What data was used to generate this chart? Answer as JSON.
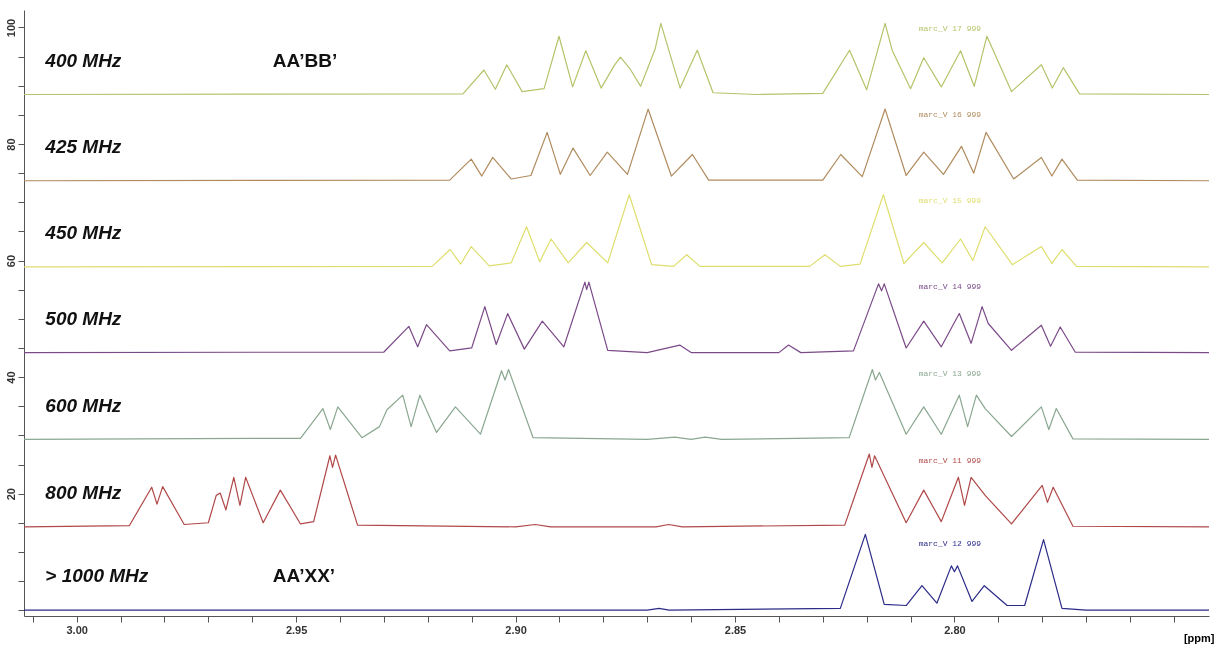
{
  "chart_data": {
    "type": "line",
    "xlabel": "[ppm]",
    "xlim": [
      3.012,
      2.742
    ],
    "ylim": [
      -1,
      103
    ],
    "xticks": [
      {
        "value": 3.01,
        "label": null
      },
      {
        "value": 3.0,
        "label": "3.00"
      },
      {
        "value": 2.99,
        "label": null
      },
      {
        "value": 2.98,
        "label": null
      },
      {
        "value": 2.97,
        "label": null
      },
      {
        "value": 2.96,
        "label": null
      },
      {
        "value": 2.95,
        "label": "2.95"
      },
      {
        "value": 2.94,
        "label": null
      },
      {
        "value": 2.93,
        "label": null
      },
      {
        "value": 2.92,
        "label": null
      },
      {
        "value": 2.91,
        "label": null
      },
      {
        "value": 2.9,
        "label": "2.90"
      },
      {
        "value": 2.89,
        "label": null
      },
      {
        "value": 2.88,
        "label": null
      },
      {
        "value": 2.87,
        "label": null
      },
      {
        "value": 2.86,
        "label": null
      },
      {
        "value": 2.85,
        "label": "2.85"
      },
      {
        "value": 2.84,
        "label": null
      },
      {
        "value": 2.83,
        "label": null
      },
      {
        "value": 2.82,
        "label": null
      },
      {
        "value": 2.81,
        "label": null
      },
      {
        "value": 2.8,
        "label": "2.80"
      },
      {
        "value": 2.79,
        "label": null
      },
      {
        "value": 2.78,
        "label": null
      },
      {
        "value": 2.77,
        "label": null
      },
      {
        "value": 2.76,
        "label": null
      },
      {
        "value": 2.75,
        "label": null
      }
    ],
    "yticks": [
      {
        "value": 0,
        "label": null
      },
      {
        "value": 5,
        "label": null
      },
      {
        "value": 10,
        "label": null
      },
      {
        "value": 15,
        "label": null
      },
      20,
      {
        "value": 25,
        "label": null
      },
      {
        "value": 30,
        "label": null
      },
      {
        "value": 35,
        "label": null
      },
      40,
      {
        "value": 45,
        "label": null
      },
      {
        "value": 50,
        "label": null
      },
      {
        "value": 55,
        "label": null
      },
      60,
      {
        "value": 65,
        "label": null
      },
      {
        "value": 70,
        "label": null
      },
      {
        "value": 75,
        "label": null
      },
      80,
      {
        "value": 85,
        "label": null
      },
      {
        "value": 90,
        "label": null
      },
      {
        "value": 95,
        "label": null
      },
      100
    ],
    "grid": false,
    "legend": false,
    "marker": "none",
    "line_style": "solid",
    "annotations": [
      "AA’BB’",
      "AA’XX’",
      "marc_V  17  999",
      "marc_V  16  999",
      "marc_V  15  999",
      "marc_V  14  999",
      "marc_V  13  999",
      "marc_V  11  999",
      "marc_V  12  999"
    ],
    "series": [
      {
        "name": "400 MHz",
        "color": "#b3c46a",
        "x": [
          3.012,
          2.912,
          2.9072,
          2.9046,
          2.902,
          2.8985,
          2.8935,
          2.8901,
          2.887,
          2.884,
          2.8805,
          2.8775,
          2.8761,
          2.874,
          2.8715,
          2.8682,
          2.8669,
          2.8625,
          2.8586,
          2.855,
          2.845,
          2.83,
          2.8239,
          2.82,
          2.8158,
          2.8142,
          2.81,
          2.807,
          2.803,
          2.7986,
          2.7955,
          2.7926,
          2.787,
          2.7802,
          2.7777,
          2.7752,
          2.7715,
          2.742
        ],
        "values": [
          88.5,
          88.6,
          92.7,
          89.4,
          93.6,
          89.0,
          89.5,
          98.5,
          89.8,
          96.0,
          89.6,
          93.5,
          94.9,
          93.0,
          89.9,
          96.3,
          100.7,
          89.6,
          96.1,
          88.8,
          88.5,
          88.7,
          96.1,
          89.3,
          100.7,
          96.1,
          89.5,
          94.8,
          89.8,
          96.0,
          89.9,
          98.5,
          89.0,
          93.6,
          89.6,
          93.1,
          88.6,
          88.5
        ]
      },
      {
        "name": "425 MHz",
        "color": "#b08b5e",
        "x": [
          3.012,
          2.915,
          2.9101,
          2.9077,
          2.9052,
          2.901,
          2.8965,
          2.8928,
          2.8898,
          2.8869,
          2.883,
          2.8791,
          2.8745,
          2.8698,
          2.8645,
          2.8597,
          2.856,
          2.83,
          2.8259,
          2.821,
          2.8158,
          2.811,
          2.807,
          2.8025,
          2.7984,
          2.7956,
          2.7928,
          2.7865,
          2.7802,
          2.7778,
          2.7755,
          2.772,
          2.742
        ],
        "values": [
          73.7,
          73.8,
          77.4,
          74.5,
          77.7,
          74.0,
          74.6,
          82.0,
          74.8,
          79.3,
          74.6,
          78.6,
          74.8,
          86.0,
          74.5,
          78.2,
          73.8,
          73.8,
          78.2,
          74.4,
          86.0,
          74.6,
          78.6,
          74.8,
          79.6,
          75.0,
          82.0,
          74.0,
          77.7,
          74.5,
          77.4,
          73.8,
          73.7
        ]
      },
      {
        "name": "450 MHz",
        "color": "#dede6e",
        "x": [
          3.012,
          2.919,
          2.9149,
          2.9125,
          2.9101,
          2.906,
          2.901,
          2.8975,
          2.8945,
          2.8919,
          2.888,
          2.8838,
          2.879,
          2.8741,
          2.869,
          2.864,
          2.861,
          2.858,
          2.833,
          2.8295,
          2.826,
          2.8215,
          2.8162,
          2.8115,
          2.807,
          2.8028,
          2.7986,
          2.7958,
          2.793,
          2.7868,
          2.7802,
          2.7778,
          2.7755,
          2.7722,
          2.742
        ],
        "values": [
          58.9,
          59.0,
          61.9,
          59.4,
          62.4,
          59.1,
          59.6,
          65.8,
          59.8,
          63.7,
          59.6,
          63.1,
          59.6,
          71.3,
          59.3,
          59.0,
          61.0,
          59.0,
          59.0,
          61.0,
          59.0,
          59.4,
          71.3,
          59.5,
          63.1,
          59.6,
          63.7,
          60.0,
          65.8,
          59.3,
          62.4,
          59.5,
          61.9,
          59.0,
          58.9
        ]
      },
      {
        "name": "500 MHz",
        "color": "#7b4a88",
        "x": [
          3.012,
          2.93,
          2.9243,
          2.9223,
          2.9203,
          2.915,
          2.91,
          2.907,
          2.9044,
          2.9018,
          2.898,
          2.8939,
          2.889,
          2.8842,
          2.8838,
          2.8833,
          2.879,
          2.87,
          2.8626,
          2.86,
          2.84,
          2.8378,
          2.835,
          2.823,
          2.8173,
          2.8166,
          2.816,
          2.811,
          2.807,
          2.803,
          2.7989,
          2.7962,
          2.7937,
          2.7923,
          2.787,
          2.7802,
          2.7781,
          2.7759,
          2.7725,
          2.742
        ],
        "values": [
          44.2,
          44.3,
          48.7,
          45.2,
          49.0,
          44.5,
          45.0,
          52.1,
          45.6,
          50.9,
          44.8,
          49.6,
          45.2,
          56.3,
          55.0,
          56.3,
          44.6,
          44.2,
          45.5,
          44.2,
          44.2,
          45.5,
          44.2,
          44.5,
          56.0,
          54.8,
          56.0,
          45.0,
          49.6,
          45.2,
          50.9,
          45.8,
          52.1,
          49.2,
          44.6,
          48.9,
          45.3,
          48.6,
          44.3,
          44.2
        ]
      },
      {
        "name": "600 MHz",
        "color": "#8aa790",
        "x": [
          3.012,
          2.949,
          2.9439,
          2.9422,
          2.9405,
          2.935,
          2.931,
          2.9293,
          2.9257,
          2.9238,
          2.9218,
          2.918,
          2.9137,
          2.908,
          2.9032,
          2.9024,
          2.9016,
          2.896,
          2.87,
          2.8637,
          2.86,
          2.8568,
          2.853,
          2.824,
          2.8187,
          2.818,
          2.8171,
          2.811,
          2.807,
          2.803,
          2.7989,
          2.797,
          2.795,
          2.793,
          2.787,
          2.7802,
          2.7785,
          2.7768,
          2.773,
          2.742
        ],
        "values": [
          29.3,
          29.5,
          34.6,
          31.0,
          34.9,
          29.6,
          31.5,
          34.4,
          36.9,
          31.5,
          36.9,
          30.5,
          34.9,
          30.2,
          41.1,
          39.5,
          41.3,
          29.6,
          29.3,
          29.7,
          29.3,
          29.7,
          29.3,
          29.6,
          41.3,
          39.5,
          40.8,
          30.2,
          34.9,
          30.2,
          36.9,
          31.5,
          36.9,
          34.6,
          29.8,
          34.9,
          31.0,
          34.6,
          29.4,
          29.3
        ]
      },
      {
        "name": "800 MHz",
        "color": "#b04848",
        "x": [
          3.012,
          2.988,
          2.9829,
          2.9817,
          2.9804,
          2.9755,
          2.97,
          2.9682,
          2.9673,
          2.966,
          2.9642,
          2.9628,
          2.9615,
          2.9575,
          2.9536,
          2.949,
          2.946,
          2.9423,
          2.9417,
          2.941,
          2.936,
          2.9,
          2.8955,
          2.892,
          2.868,
          2.8651,
          2.862,
          2.825,
          2.8194,
          2.8188,
          2.8182,
          2.811,
          2.807,
          2.803,
          2.7991,
          2.7977,
          2.7962,
          2.793,
          2.787,
          2.78,
          2.7788,
          2.7775,
          2.773,
          2.742
        ],
        "values": [
          14.3,
          14.5,
          21.1,
          18.2,
          21.2,
          14.7,
          15.0,
          19.7,
          20.1,
          17.2,
          22.8,
          18.0,
          22.8,
          15.0,
          20.6,
          14.8,
          15.2,
          26.5,
          24.5,
          26.6,
          14.6,
          14.3,
          14.7,
          14.3,
          14.3,
          14.7,
          14.3,
          14.6,
          26.8,
          24.5,
          26.5,
          15.0,
          20.6,
          15.2,
          22.8,
          18.0,
          22.8,
          19.7,
          14.8,
          21.4,
          18.5,
          21.1,
          14.4,
          14.3
        ]
      },
      {
        "name": "> 1000 MHz",
        "color": "#2b2b88",
        "x": [
          3.012,
          2.87,
          2.8673,
          2.865,
          2.826,
          2.8203,
          2.816,
          2.811,
          2.8074,
          2.804,
          2.8007,
          2.8,
          2.7993,
          2.796,
          2.7932,
          2.788,
          2.784,
          2.7797,
          2.7755,
          2.77,
          2.742
        ],
        "values": [
          0,
          0,
          0.3,
          0,
          0.3,
          13.0,
          1.0,
          0.8,
          4.2,
          1.2,
          7.6,
          6.6,
          7.6,
          1.5,
          4.2,
          0.8,
          0.8,
          12.1,
          0.3,
          0,
          0
        ]
      }
    ]
  }
}
